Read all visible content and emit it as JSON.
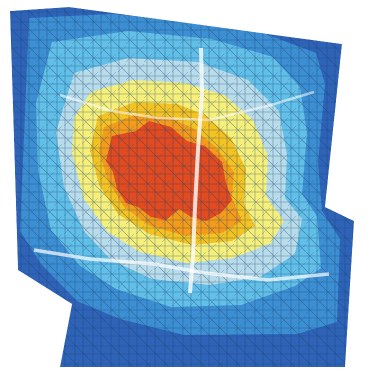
{
  "map": {
    "type": "heatmap-overlay",
    "background": "#ffffff",
    "zones": [
      {
        "name": "outer-zone",
        "color": "#2f63b8"
      },
      {
        "name": "zone-2",
        "color": "#3d8fd3"
      },
      {
        "name": "zone-3",
        "color": "#62bfe8"
      },
      {
        "name": "zone-4",
        "color": "#b9dcea"
      },
      {
        "name": "zone-5",
        "color": "#f6ef7a"
      },
      {
        "name": "zone-6",
        "color": "#f4c321"
      },
      {
        "name": "zone-7",
        "color": "#f59b1a"
      },
      {
        "name": "core-zone",
        "color": "#e24a1f"
      }
    ],
    "street_color": "#123a68",
    "street_color_light": "#1d5c92"
  }
}
